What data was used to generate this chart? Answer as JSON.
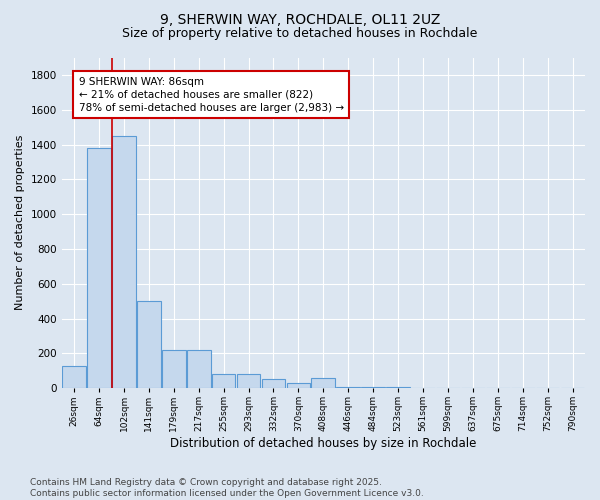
{
  "title": "9, SHERWIN WAY, ROCHDALE, OL11 2UZ",
  "subtitle": "Size of property relative to detached houses in Rochdale",
  "xlabel": "Distribution of detached houses by size in Rochdale",
  "ylabel": "Number of detached properties",
  "categories": [
    "26sqm",
    "64sqm",
    "102sqm",
    "141sqm",
    "179sqm",
    "217sqm",
    "255sqm",
    "293sqm",
    "332sqm",
    "370sqm",
    "408sqm",
    "446sqm",
    "484sqm",
    "523sqm",
    "561sqm",
    "599sqm",
    "637sqm",
    "675sqm",
    "714sqm",
    "752sqm",
    "790sqm"
  ],
  "values": [
    130,
    1380,
    1450,
    500,
    220,
    220,
    80,
    80,
    50,
    30,
    60,
    5,
    5,
    5,
    0,
    0,
    0,
    0,
    0,
    0,
    0
  ],
  "bar_color": "#c5d8ed",
  "bar_edge_color": "#5b9bd5",
  "ylim": [
    0,
    1900
  ],
  "yticks": [
    0,
    200,
    400,
    600,
    800,
    1000,
    1200,
    1400,
    1600,
    1800
  ],
  "vline_x": 1.5,
  "annotation_text": "9 SHERWIN WAY: 86sqm\n← 21% of detached houses are smaller (822)\n78% of semi-detached houses are larger (2,983) →",
  "annotation_box_facecolor": "#ffffff",
  "annotation_box_edgecolor": "#cc0000",
  "vline_color": "#cc0000",
  "bg_color": "#dce6f1",
  "grid_color": "#ffffff",
  "footer": "Contains HM Land Registry data © Crown copyright and database right 2025.\nContains public sector information licensed under the Open Government Licence v3.0.",
  "title_fontsize": 10,
  "subtitle_fontsize": 9,
  "annotation_fontsize": 7.5,
  "footer_fontsize": 6.5,
  "ylabel_fontsize": 8,
  "xlabel_fontsize": 8.5
}
